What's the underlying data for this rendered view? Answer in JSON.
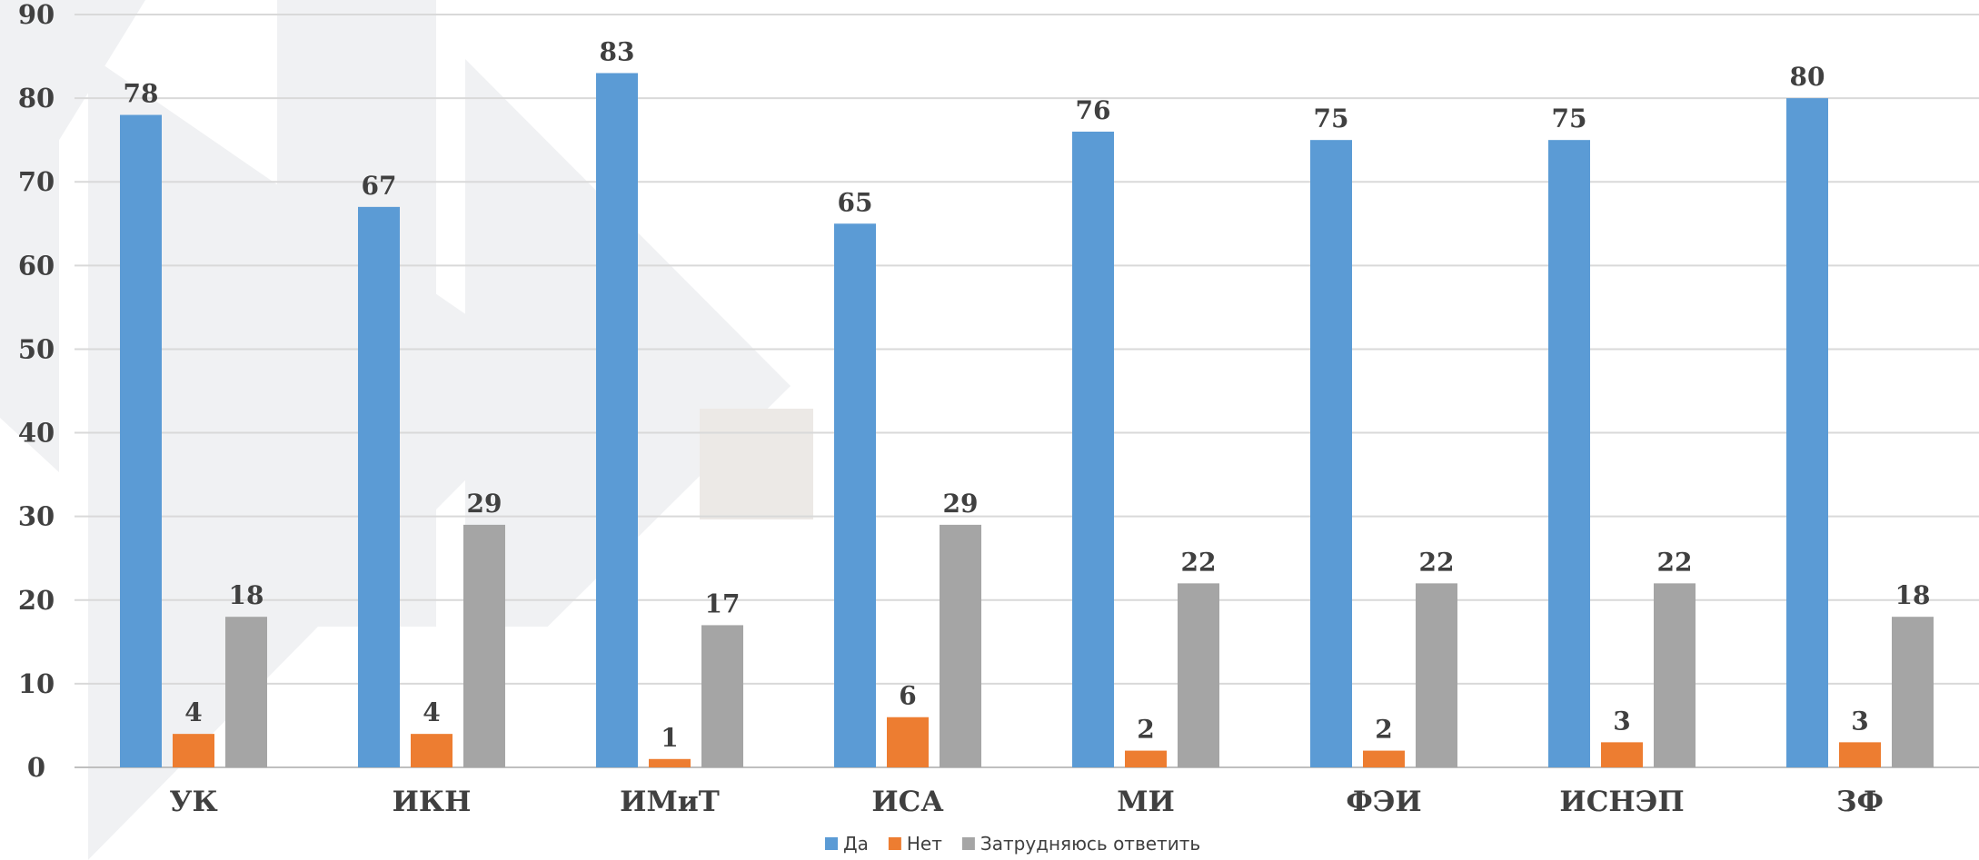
{
  "chart_data": {
    "type": "bar",
    "categories": [
      "УК",
      "ИКН",
      "ИМиТ",
      "ИСА",
      "МИ",
      "ФЭИ",
      "ИСНЭП",
      "ЗФ"
    ],
    "series": [
      {
        "name": "Да",
        "color": "#5b9bd5",
        "values": [
          78,
          67,
          83,
          65,
          76,
          75,
          75,
          80
        ]
      },
      {
        "name": "Нет",
        "color": "#ed7d31",
        "values": [
          4,
          4,
          1,
          6,
          2,
          2,
          3,
          3
        ]
      },
      {
        "name": "Затрудняюсь ответить",
        "color": "#a5a5a5",
        "values": [
          18,
          29,
          17,
          29,
          22,
          22,
          22,
          18
        ]
      }
    ],
    "yticks": [
      "0",
      "10",
      "20",
      "30",
      "40",
      "50",
      "60",
      "70",
      "80",
      "90"
    ],
    "ylim": [
      0,
      90
    ],
    "grid": true,
    "legend_position": "bottom"
  }
}
